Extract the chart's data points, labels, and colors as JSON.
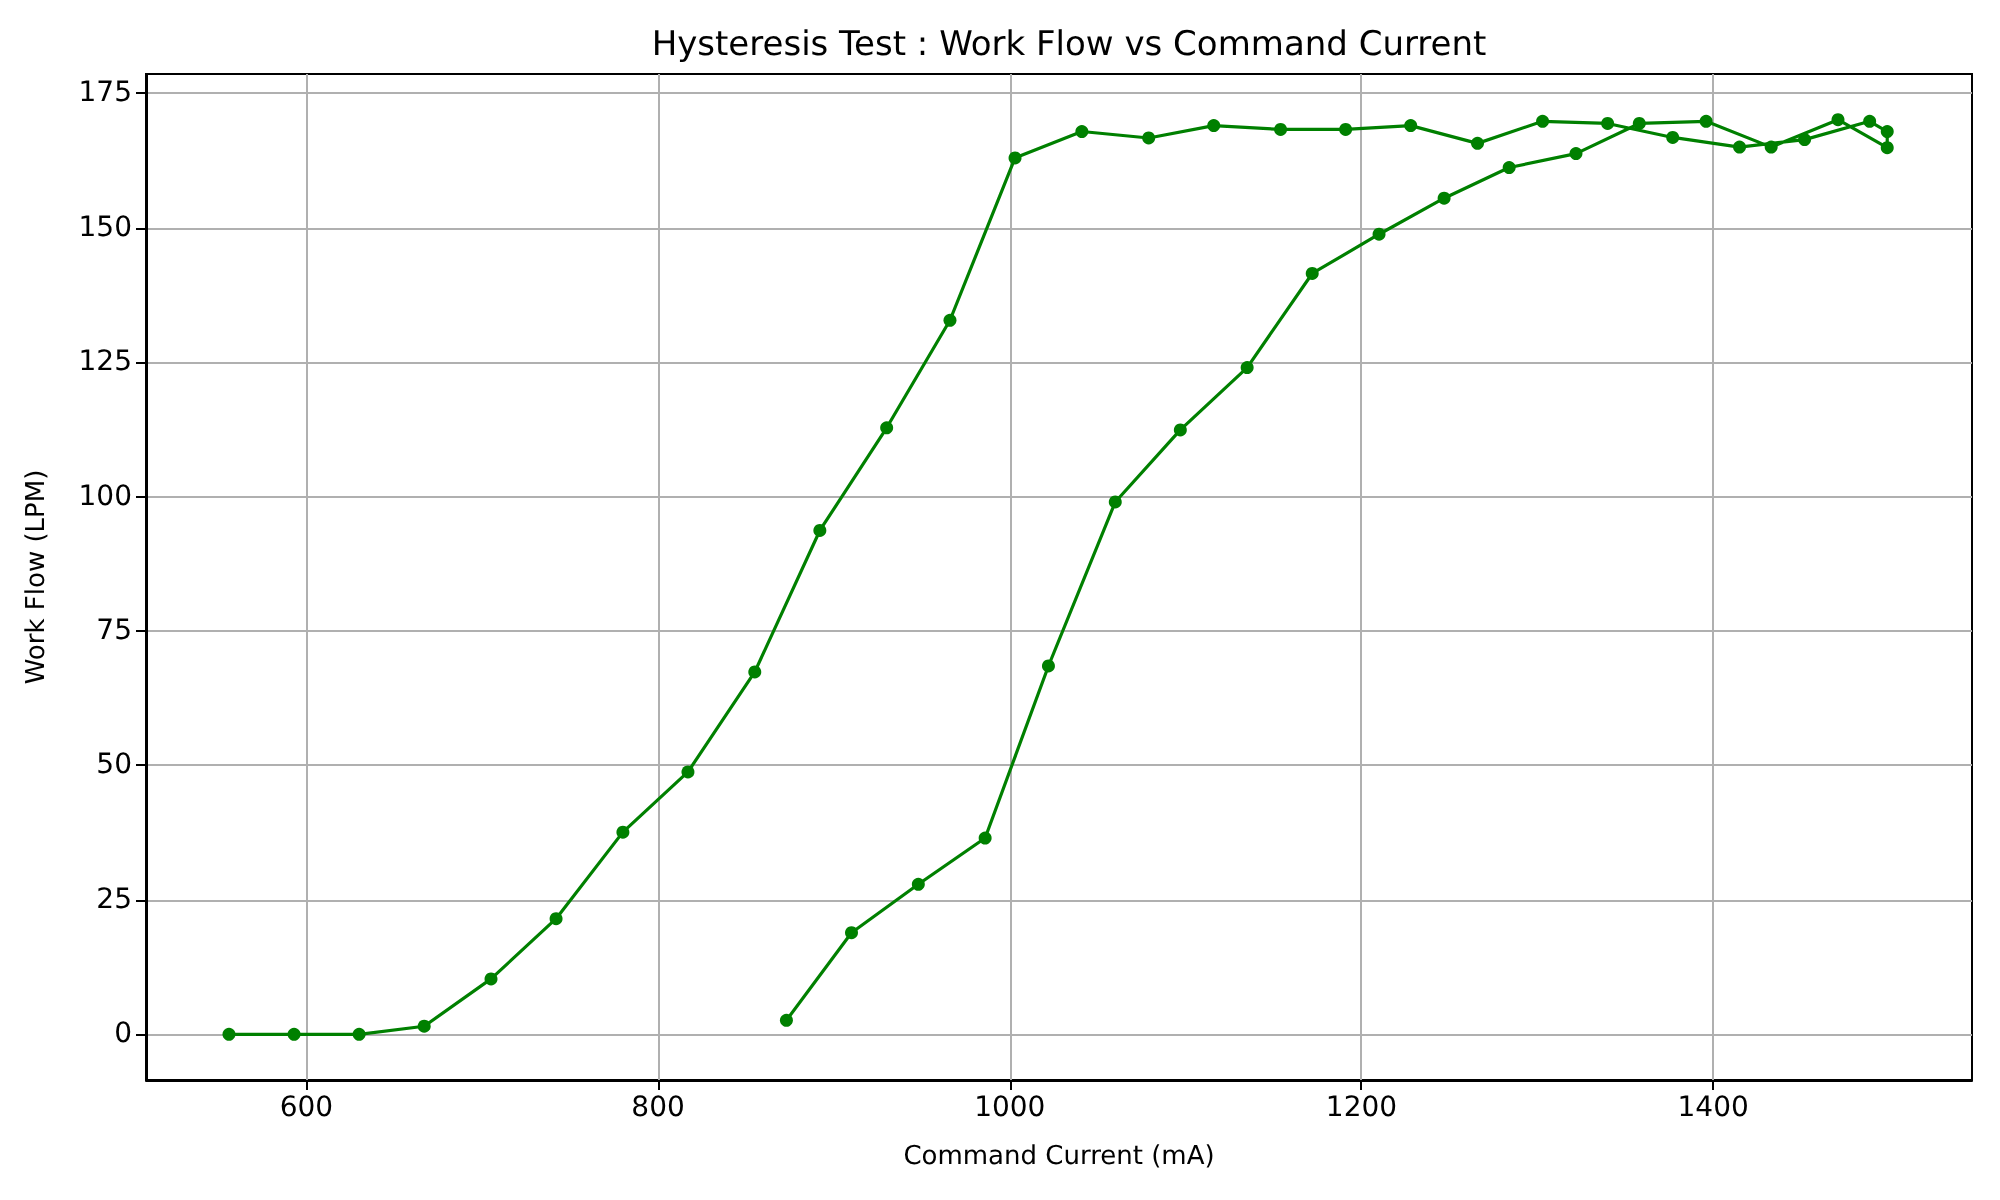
{
  "chart_data": {
    "type": "line",
    "title": "Hysteresis Test : Work Flow vs Command Current",
    "xlabel": "Command Current (mA)",
    "ylabel": "Work Flow (LPM)",
    "x": [
      873,
      910,
      948,
      986,
      1022,
      1060,
      1097,
      1135,
      1172,
      1210,
      1247,
      1284,
      1322,
      1358,
      1396,
      1433,
      1471,
      1499,
      1499,
      1489,
      1452,
      1415,
      1377,
      1340,
      1303,
      1266,
      1228,
      1191,
      1154,
      1116,
      1079,
      1041,
      1003,
      966,
      930,
      892,
      855,
      817,
      780,
      742,
      705,
      667,
      630,
      593,
      556
    ],
    "series": [
      {
        "color": "#008000",
        "values": [
          2.6,
          18.9,
          27.9,
          36.5,
          68.5,
          99.0,
          112.4,
          124.0,
          141.5,
          148.8,
          155.5,
          161.2,
          163.8,
          169.4,
          169.8,
          165.0,
          170.1,
          164.9,
          167.9,
          169.8,
          166.4,
          165.0,
          166.8,
          169.4,
          169.8,
          165.7,
          169.0,
          168.3,
          168.3,
          169.0,
          166.7,
          167.9,
          163.0,
          132.8,
          112.8,
          93.7,
          67.4,
          48.8,
          37.6,
          21.5,
          10.3,
          1.5,
          0,
          0,
          0
        ]
      }
    ],
    "xlim": [
      508.8,
      1547.2
    ],
    "ylim": [
      -8.5,
      178.6
    ],
    "xticks": [
      600,
      800,
      1000,
      1200,
      1400
    ],
    "yticks": [
      0,
      25,
      50,
      75,
      100,
      125,
      150,
      175
    ],
    "grid": true,
    "marker": "circle",
    "line_style": "solid"
  }
}
